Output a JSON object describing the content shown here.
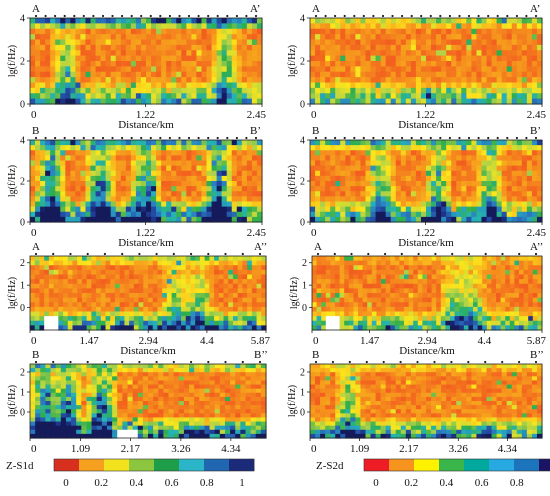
{
  "chart_data": [
    {
      "id": "panel-AA1-S1d",
      "type": "heatmap",
      "start_label": "A",
      "end_label": "A’",
      "xlabel": "Distance/km",
      "ylabel": "lg(f/Hz)",
      "x_ticks": [
        "0",
        "1.22",
        "2.45"
      ],
      "xlim": [
        0,
        2.45
      ],
      "y_ticks": [
        "0",
        "2",
        "4"
      ],
      "ylim": [
        0,
        4
      ],
      "colorscale": "Z-S1d",
      "pattern": {
        "rows": 16,
        "cols": 46,
        "top_band": 0.75,
        "bottom_band": 0.6,
        "bulge_at": [
          0.15,
          0.85
        ],
        "bulge_strength": 0.55,
        "seed": 11
      }
    },
    {
      "id": "panel-AA1-S2d",
      "type": "heatmap",
      "start_label": "A",
      "end_label": "A’",
      "xlabel": "Distance/km",
      "ylabel": "lg(f/Hz)",
      "x_ticks": [
        "0",
        "1.22",
        "2.45"
      ],
      "xlim": [
        0,
        2.45
      ],
      "y_ticks": [
        "0",
        "2",
        "4"
      ],
      "ylim": [
        0,
        4
      ],
      "colorscale": "Z-S2d",
      "pattern": {
        "rows": 16,
        "cols": 46,
        "top_band": 0.3,
        "bottom_band": 0.55,
        "bulge_at": [],
        "bulge_strength": 0.0,
        "seed": 23
      }
    },
    {
      "id": "panel-BB1-S1d",
      "type": "heatmap",
      "start_label": "B",
      "end_label": "B’",
      "xlabel": "Distance/km",
      "ylabel": "lg(f/Hz)",
      "x_ticks": [
        "0",
        "1.22",
        "2.45"
      ],
      "xlim": [
        0,
        2.45
      ],
      "y_ticks": [
        "0",
        "2",
        "4"
      ],
      "ylim": [
        0,
        4
      ],
      "colorscale": "Z-S1d",
      "pattern": {
        "rows": 16,
        "cols": 46,
        "top_band": 0.55,
        "bottom_band": 0.9,
        "bulge_at": [
          0.08,
          0.3,
          0.5,
          0.82
        ],
        "bulge_strength": 0.95,
        "seed": 37
      }
    },
    {
      "id": "panel-BB1-S2d",
      "type": "heatmap",
      "start_label": "B",
      "end_label": "B’",
      "xlabel": "Distance/km",
      "ylabel": "lg(f/Hz)",
      "x_ticks": [
        "0",
        "1.22",
        "2.45"
      ],
      "xlim": [
        0,
        2.45
      ],
      "y_ticks": [
        "0",
        "2",
        "4"
      ],
      "ylim": [
        0,
        4
      ],
      "colorscale": "Z-S2d",
      "pattern": {
        "rows": 16,
        "cols": 46,
        "top_band": 0.5,
        "bottom_band": 0.7,
        "bulge_at": [
          0.3,
          0.55,
          0.78
        ],
        "bulge_strength": 0.6,
        "seed": 41
      }
    },
    {
      "id": "panel-AA2-S1d",
      "type": "heatmap",
      "start_label": "A",
      "end_label": "A’’",
      "xlabel": "Distance/km",
      "ylabel": "lg(f/Hz)",
      "x_ticks": [
        "0",
        "1.47",
        "2.94",
        "4.4",
        "5.87"
      ],
      "xlim": [
        0,
        5.87
      ],
      "y_ticks": [
        "0",
        "1",
        "2"
      ],
      "ylim": [
        -1,
        2.3
      ],
      "colorscale": "Z-S1d",
      "pattern": {
        "rows": 16,
        "cols": 50,
        "top_band": 0.25,
        "bottom_band": 0.8,
        "bulge_at": [
          0.62,
          0.72
        ],
        "bulge_strength": 0.45,
        "seed": 53,
        "white_patch": [
          0.06,
          0.86,
          0.06,
          0.14
        ]
      }
    },
    {
      "id": "panel-AA2-S2d",
      "type": "heatmap",
      "start_label": "A",
      "end_label": "A’’",
      "xlabel": "Distance/km",
      "ylabel": "lg(f/Hz)",
      "x_ticks": [
        "0",
        "1.47",
        "2.94",
        "4.4",
        "5.87"
      ],
      "xlim": [
        0,
        5.87
      ],
      "y_ticks": [
        "0",
        "1",
        "2"
      ],
      "ylim": [
        -1,
        2.3
      ],
      "colorscale": "Z-S2d",
      "pattern": {
        "rows": 16,
        "cols": 50,
        "top_band": 0.1,
        "bottom_band": 0.55,
        "bulge_at": [
          0.62,
          0.7
        ],
        "bulge_strength": 0.45,
        "seed": 67,
        "white_patch": [
          0.05,
          0.86,
          0.06,
          0.14
        ]
      }
    },
    {
      "id": "panel-BB2-S1d",
      "type": "heatmap",
      "start_label": "B",
      "end_label": "B’’",
      "xlabel": "",
      "ylabel": "lg(f/Hz)",
      "x_ticks": [
        "0",
        "1.09",
        "2.17",
        "3.26",
        "4.34"
      ],
      "xlim": [
        0,
        5.1
      ],
      "y_ticks": [
        "0",
        "1",
        "2"
      ],
      "ylim": [
        -1.3,
        2.4
      ],
      "colorscale": "Z-S1d",
      "pattern": {
        "rows": 18,
        "cols": 46,
        "top_band": 0.3,
        "bottom_band": 1.0,
        "bulge_at": [
          0.05,
          0.15,
          0.3
        ],
        "bulge_strength": 0.95,
        "seed": 79,
        "white_patch": [
          0.36,
          0.9,
          0.1,
          0.1
        ]
      }
    },
    {
      "id": "panel-BB2-S2d",
      "type": "heatmap",
      "start_label": "B",
      "end_label": "B’’",
      "xlabel": "",
      "ylabel": "lg(f/Hz)",
      "x_ticks": [
        "0",
        "1.09",
        "2.17",
        "3.26",
        "4.34"
      ],
      "xlim": [
        0,
        5.1
      ],
      "y_ticks": [
        "0",
        "1",
        "2"
      ],
      "ylim": [
        -1.3,
        2.4
      ],
      "colorscale": "Z-S2d",
      "pattern": {
        "rows": 18,
        "cols": 46,
        "top_band": 0.2,
        "bottom_band": 0.75,
        "bulge_at": [
          0.16
        ],
        "bulge_strength": 0.55,
        "seed": 97
      }
    }
  ],
  "colorbars": [
    {
      "label": "Z-S1d",
      "ticks": [
        "0",
        "0.2",
        "0.4",
        "0.6",
        "0.8",
        "1"
      ],
      "colors": [
        "#d7301f",
        "#f5a01e",
        "#f2e21d",
        "#8cc63f",
        "#1f9e4a",
        "#2bb5c8",
        "#2066b0",
        "#1c2a7a"
      ]
    },
    {
      "label": "Z-S2d",
      "ticks": [
        "0",
        "0.2",
        "0.4",
        "0.6",
        "0.8",
        "1"
      ],
      "colors": [
        "#ee1c25",
        "#f7941d",
        "#fff200",
        "#39b54a",
        "#00a99d",
        "#27aae1",
        "#1c75bc",
        "#1b1464"
      ]
    }
  ],
  "scale_colors": [
    [
      0.0,
      "#ee1c22"
    ],
    [
      0.12,
      "#f36a1e"
    ],
    [
      0.22,
      "#f7a51d"
    ],
    [
      0.32,
      "#fde61b"
    ],
    [
      0.44,
      "#a7d04a"
    ],
    [
      0.55,
      "#2fae4b"
    ],
    [
      0.66,
      "#25b4b8"
    ],
    [
      0.78,
      "#2a7fc1"
    ],
    [
      0.9,
      "#213e9a"
    ],
    [
      1.0,
      "#141a5a"
    ]
  ]
}
